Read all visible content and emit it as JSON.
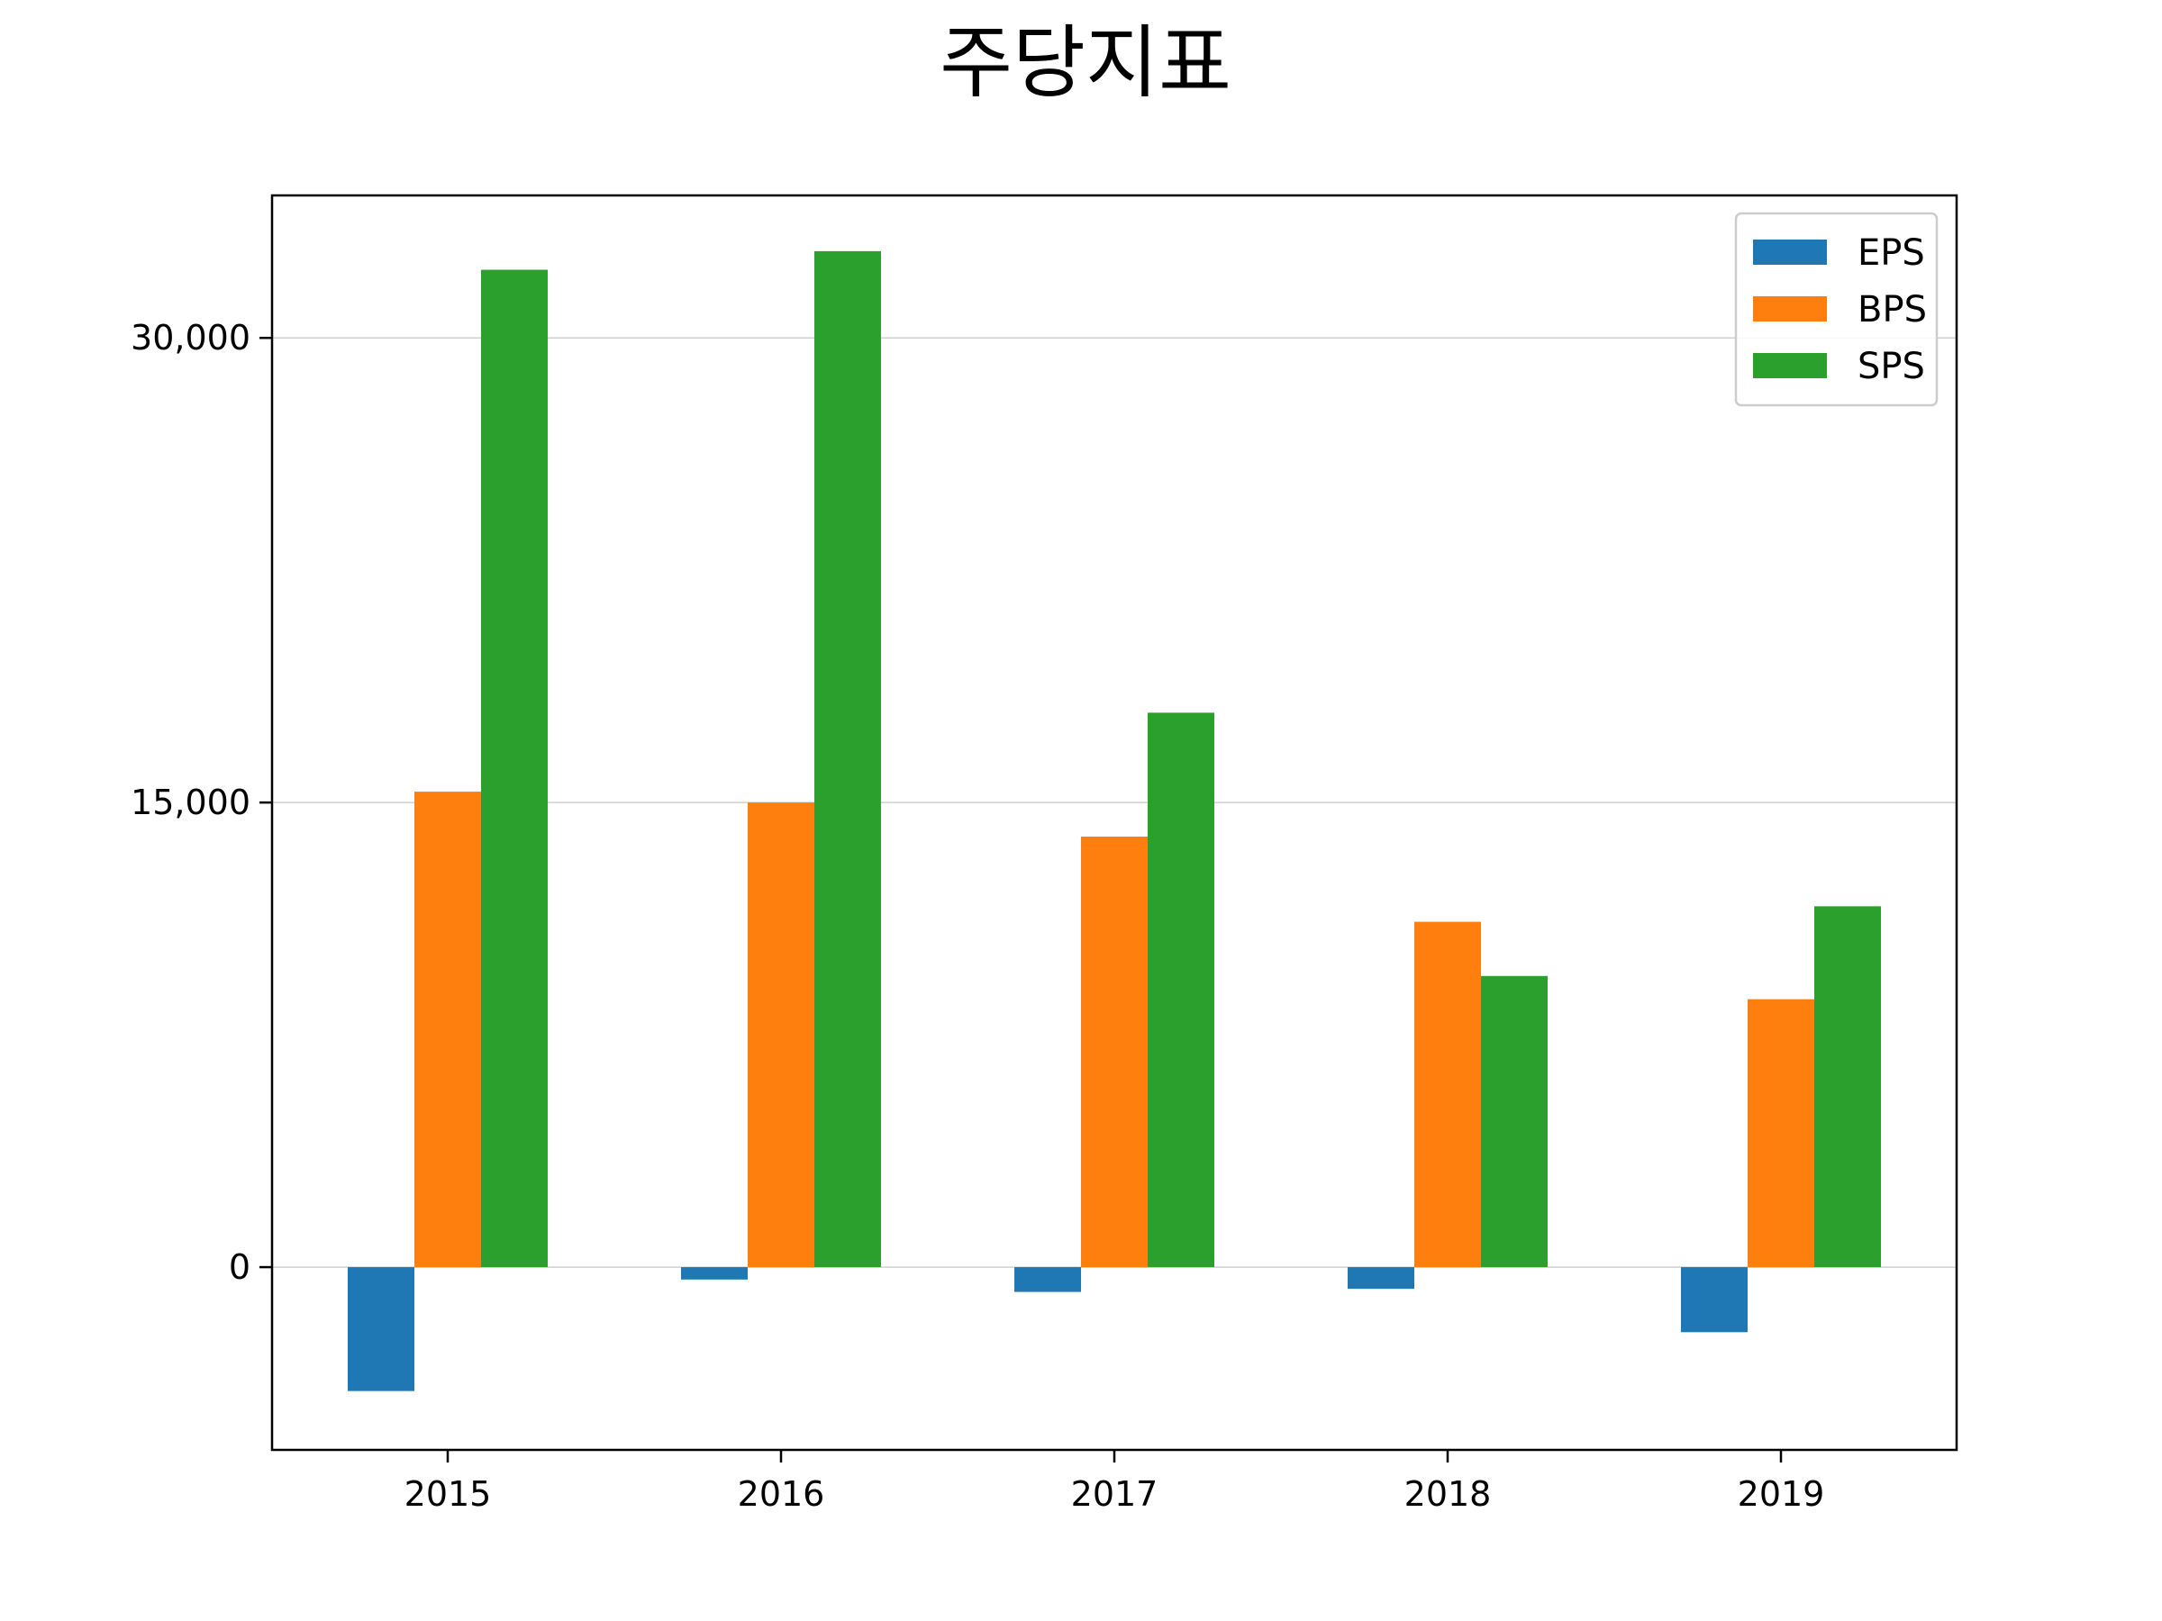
{
  "chart_data": {
    "type": "bar",
    "title": "주당지표",
    "xlabel": "",
    "ylabel": "",
    "categories": [
      "2015",
      "2016",
      "2017",
      "2018",
      "2019"
    ],
    "series": [
      {
        "name": "EPS",
        "color": "#1f77b4",
        "values": [
          -4000,
          -400,
          -800,
          -700,
          -2100
        ]
      },
      {
        "name": "BPS",
        "color": "#ff7f0e",
        "values": [
          15350,
          15000,
          13900,
          11150,
          8650
        ]
      },
      {
        "name": "SPS",
        "color": "#2ca02c",
        "values": [
          32200,
          32800,
          17900,
          9400,
          11650
        ]
      }
    ],
    "yticks": [
      0,
      15000,
      30000
    ],
    "ytick_labels": [
      "0",
      "15,000",
      "30,000"
    ],
    "ylim": [
      -5900,
      34600
    ],
    "grid": "y",
    "legend_position": "top-right"
  }
}
